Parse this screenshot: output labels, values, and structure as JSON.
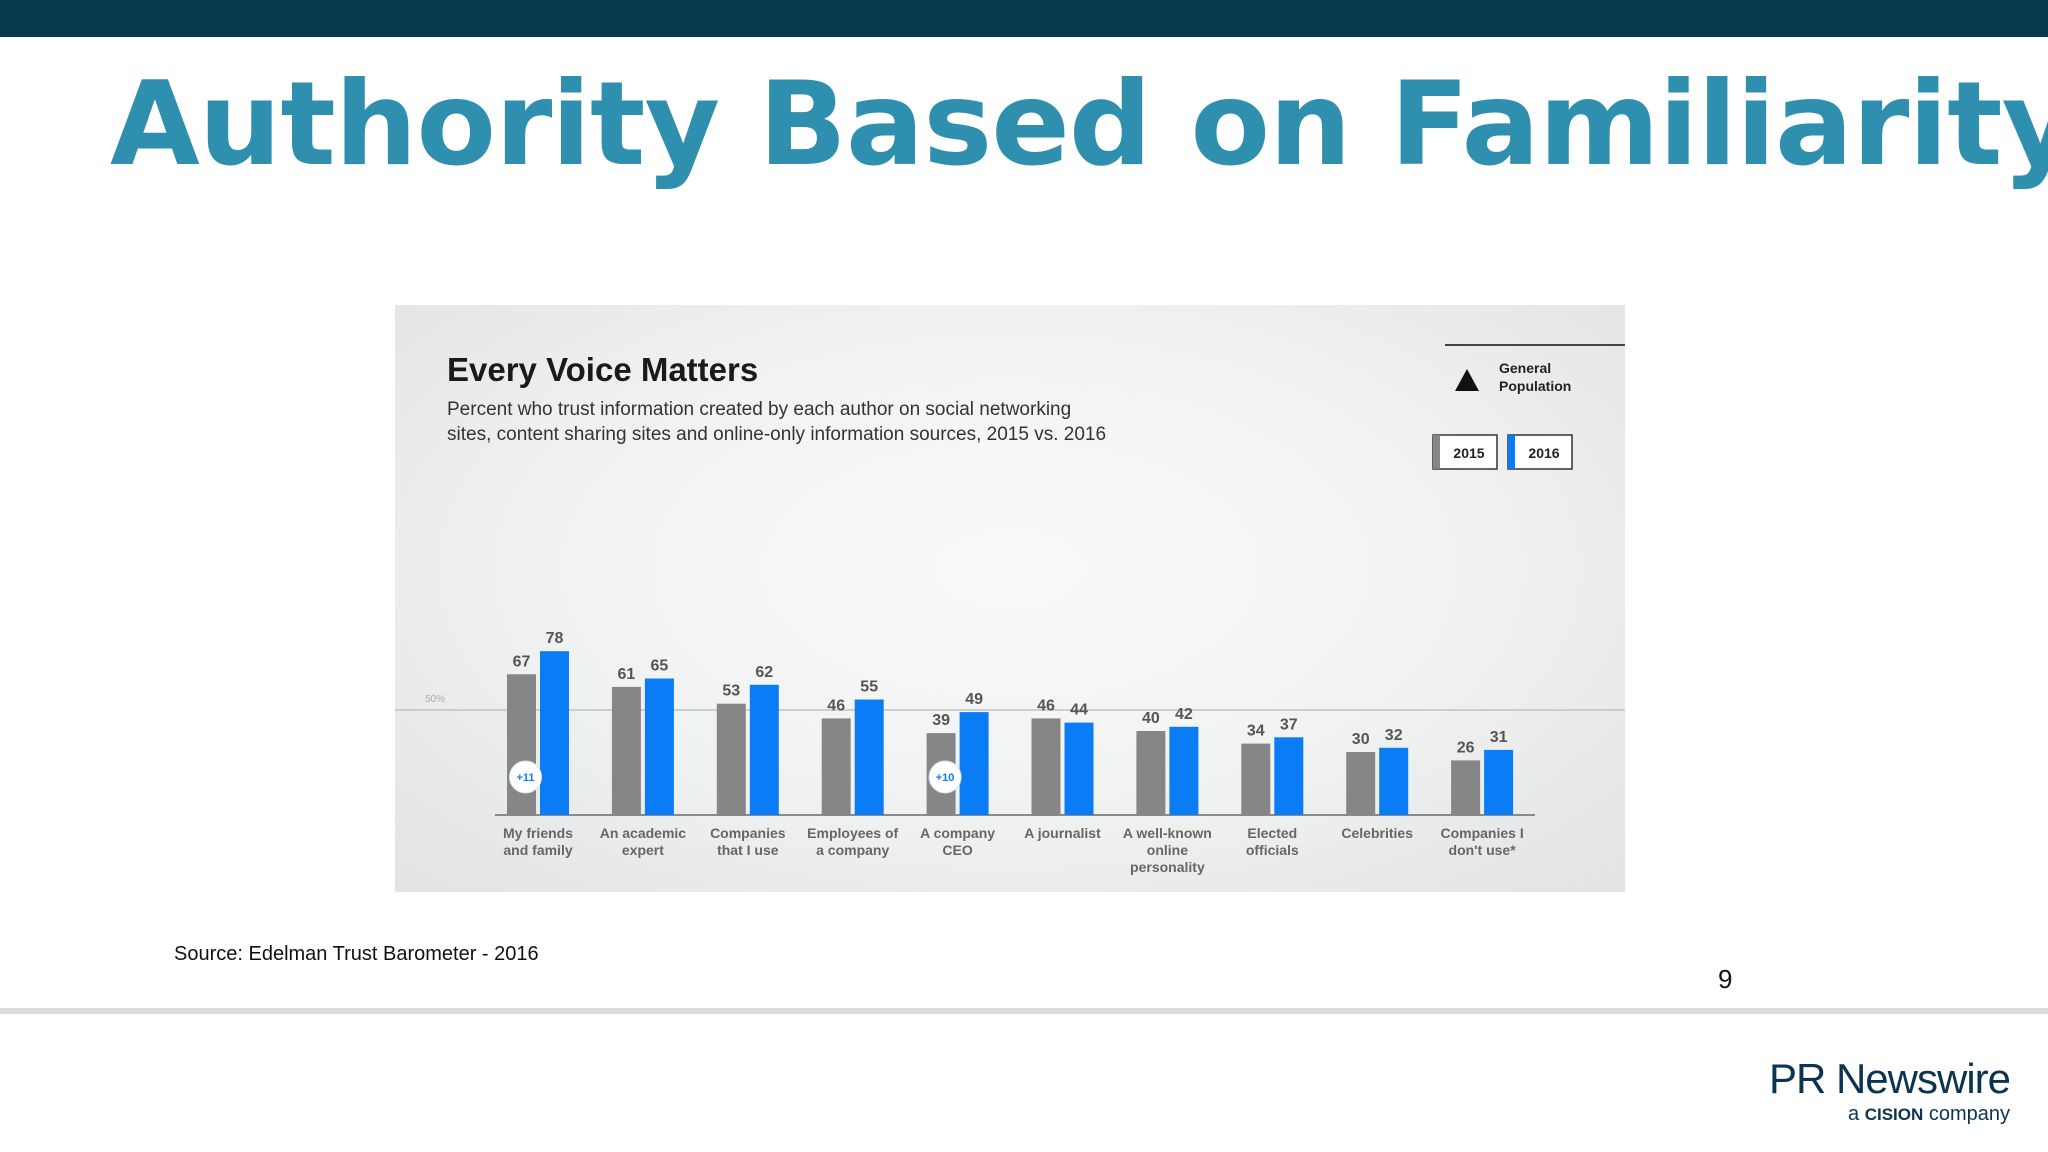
{
  "slide": {
    "title": "Authority Based on Familiarity",
    "source": "Source: Edelman Trust Barometer - 2016",
    "page_number": "9"
  },
  "logo": {
    "name": "PR Newswire",
    "tagline_prefix": "a",
    "tagline_brand": "CISION",
    "tagline_suffix": "company"
  },
  "chart_data": {
    "type": "bar",
    "title": "Every Voice Matters",
    "subtitle": [
      "Percent who trust information created by each author on social networking",
      "sites, content sharing sites and online-only information sources, 2015 vs. 2016"
    ],
    "legend_title": [
      "General",
      "Population"
    ],
    "legend_icon": "triangle-icon",
    "legend_position": "top-right",
    "reference_line": {
      "value": 50,
      "label": "50%"
    },
    "categories": [
      [
        "My friends",
        "and family"
      ],
      [
        "An academic",
        "expert"
      ],
      [
        "Companies",
        "that I use"
      ],
      [
        "Employees of",
        "a company"
      ],
      [
        "A company",
        "CEO"
      ],
      [
        "A journalist"
      ],
      [
        "A well-known",
        "online",
        "personality"
      ],
      [
        "Elected",
        "officials"
      ],
      [
        "Celebrities"
      ],
      [
        "Companies I",
        "don't use*"
      ]
    ],
    "series": [
      {
        "name": "2015",
        "color": "#868686",
        "values": [
          67,
          61,
          53,
          46,
          39,
          46,
          40,
          34,
          30,
          26
        ]
      },
      {
        "name": "2016",
        "color": "#0a7cf6",
        "values": [
          78,
          65,
          62,
          55,
          49,
          44,
          42,
          37,
          32,
          31
        ]
      }
    ],
    "change_badges": [
      {
        "category_index": 0,
        "label": "+11"
      },
      {
        "category_index": 4,
        "label": "+10"
      }
    ],
    "ylim": [
      0,
      100
    ],
    "grid": false
  }
}
